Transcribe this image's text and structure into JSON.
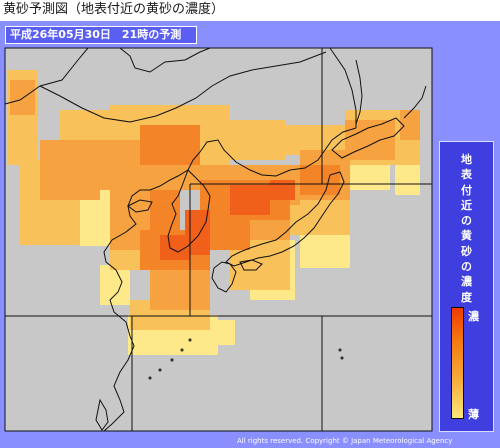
{
  "title": "黄砂予測図（地表付近の黄砂の濃度）",
  "date_label": "平成26年05月30日　21時の予測",
  "legend": {
    "title_chars": [
      "地",
      "表",
      "付",
      "近",
      "の",
      "黄",
      "砂",
      "の",
      "濃",
      "度"
    ],
    "high_label": "濃",
    "low_label": "薄",
    "colors": [
      "#f03a00",
      "#f47a12",
      "#f6ac3a",
      "#fde778"
    ]
  },
  "copyright": "All rights reserved. Copyright © Japan Meteorological Agency",
  "map_colors": {
    "sea": "#c8c8c8",
    "frame": "#8a8fff",
    "coast": "#111111"
  }
}
